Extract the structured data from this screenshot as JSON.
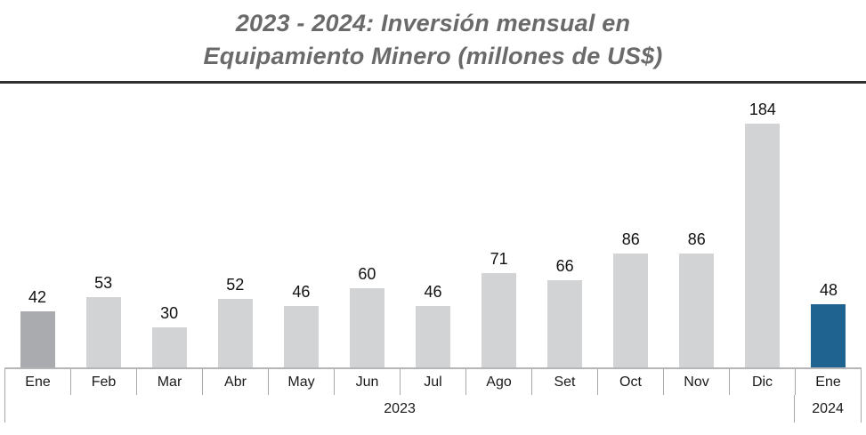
{
  "chart_data": {
    "type": "bar",
    "title": "2023 - 2024: Inversión mensual en Equipamiento Minero (millones de US$)",
    "title_lines": [
      "2023 - 2024: Inversión mensual en",
      "Equipamiento Minero (millones de US$)"
    ],
    "unit": "millones de US$",
    "categories": [
      "Ene",
      "Feb",
      "Mar",
      "Abr",
      "May",
      "Jun",
      "Jul",
      "Ago",
      "Set",
      "Oct",
      "Nov",
      "Dic",
      "Ene"
    ],
    "values": [
      42,
      53,
      30,
      52,
      46,
      60,
      46,
      71,
      66,
      86,
      86,
      184,
      48
    ],
    "groups": [
      {
        "label": "2023",
        "span": 12
      },
      {
        "label": "2024",
        "span": 1
      }
    ],
    "bar_colors": [
      "#a9abae",
      "#d2d3d5",
      "#d2d3d5",
      "#d2d3d5",
      "#d2d3d5",
      "#d2d3d5",
      "#d2d3d5",
      "#d2d3d5",
      "#d2d3d5",
      "#d2d3d5",
      "#d2d3d5",
      "#d2d3d5",
      "#1f6491"
    ],
    "colors": {
      "bar_default": "#d2d3d5",
      "bar_ene_2023": "#a9abae",
      "bar_ene_2024": "#1f6491",
      "title_text": "#6a6a6a",
      "title_divider": "#2e2e2e",
      "axis_line": "#b4b6b8",
      "tick_line": "#a6a8aa",
      "label_text": "#1a1a1a"
    },
    "value_labels_shown": true,
    "y_axis_visible": false,
    "grid": false,
    "legend": "none",
    "ylim": [
      0,
      184
    ]
  }
}
